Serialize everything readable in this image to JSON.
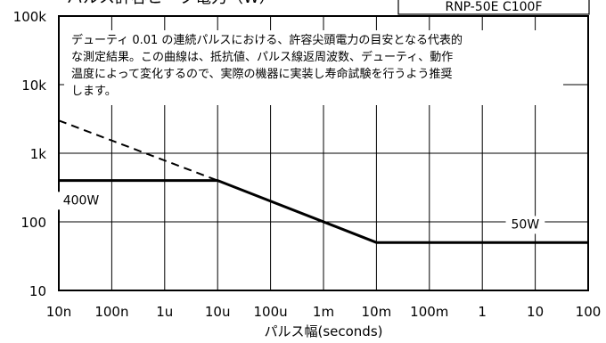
{
  "model_label": "RNP-50E C100F",
  "header_fragment": "パルス許容ピーク電力（W）",
  "chart_data": {
    "type": "line",
    "title": "",
    "xlabel": "パルス幅(seconds)",
    "ylabel": "",
    "xscale": "log",
    "yscale": "log",
    "xlim": [
      1e-08,
      100
    ],
    "ylim": [
      10,
      100000
    ],
    "x_ticks": [
      {
        "value": 1e-08,
        "label": "10n"
      },
      {
        "value": 1e-07,
        "label": "100n"
      },
      {
        "value": 1e-06,
        "label": "1u"
      },
      {
        "value": 1e-05,
        "label": "10u"
      },
      {
        "value": 0.0001,
        "label": "100u"
      },
      {
        "value": 0.001,
        "label": "1m"
      },
      {
        "value": 0.01,
        "label": "10m"
      },
      {
        "value": 0.1,
        "label": "100m"
      },
      {
        "value": 1,
        "label": "1"
      },
      {
        "value": 10,
        "label": "10"
      },
      {
        "value": 100,
        "label": "100"
      }
    ],
    "y_ticks": [
      {
        "value": 10,
        "label": "10"
      },
      {
        "value": 100,
        "label": "100"
      },
      {
        "value": 1000,
        "label": "1k"
      },
      {
        "value": 10000,
        "label": "10k"
      },
      {
        "value": 100000,
        "label": "100k"
      }
    ],
    "grid": {
      "vertical": true,
      "horizontal": true
    },
    "series": [
      {
        "style": "solid",
        "x": [
          1e-08,
          1e-05,
          0.01,
          100
        ],
        "y": [
          400,
          400,
          50,
          50
        ]
      },
      {
        "style": "dashed",
        "x": [
          1e-08,
          1e-05
        ],
        "y": [
          3000,
          400
        ]
      }
    ],
    "annotations": [
      {
        "text": "400W",
        "x": 1.2e-08,
        "y": 180
      },
      {
        "text": "50W",
        "x": 3.5,
        "y": 80
      }
    ],
    "note": [
      "デューティ 0.01 の連続パルスにおける、許容尖頭電力の目安となる代表的",
      "な測定結果。この曲線は、抵抗値、パルス線返周波数、デューティ、動作",
      "温度によって変化するので、実際の機器に実装し寿命試験を行うよう推奨",
      "します。"
    ]
  }
}
